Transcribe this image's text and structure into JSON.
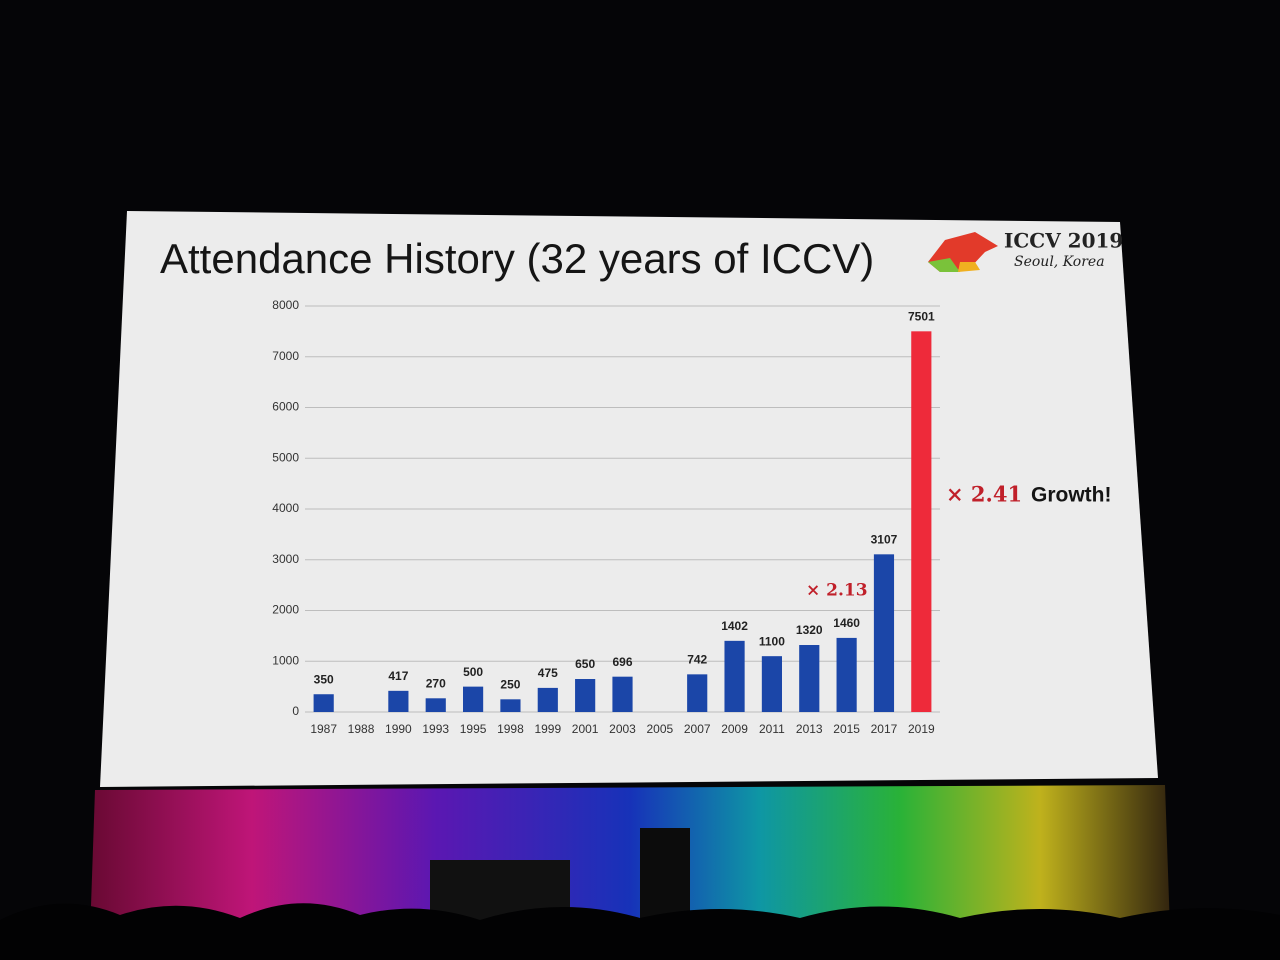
{
  "chart_data": {
    "type": "bar",
    "title": "Attendance History (32 years of ICCV)",
    "logo": {
      "name": "ICCV 2019",
      "place": "Seoul, Korea"
    },
    "categories": [
      "1987",
      "1988",
      "1990",
      "1993",
      "1995",
      "1998",
      "1999",
      "2001",
      "2003",
      "2005",
      "2007",
      "2009",
      "2011",
      "2013",
      "2015",
      "2017",
      "2019"
    ],
    "values": [
      350,
      null,
      417,
      270,
      500,
      250,
      475,
      650,
      696,
      null,
      742,
      1402,
      1100,
      1320,
      1460,
      3107,
      7501
    ],
    "colors": [
      "#1b46a8",
      "#1b46a8",
      "#1b46a8",
      "#1b46a8",
      "#1b46a8",
      "#1b46a8",
      "#1b46a8",
      "#1b46a8",
      "#1b46a8",
      "#1b46a8",
      "#1b46a8",
      "#1b46a8",
      "#1b46a8",
      "#1b46a8",
      "#1b46a8",
      "#1b46a8",
      "#ee2a3a"
    ],
    "ylim": [
      0,
      8000
    ],
    "yticks": [
      0,
      1000,
      2000,
      3000,
      4000,
      5000,
      6000,
      7000,
      8000
    ],
    "grid": true,
    "annotations": [
      "× 2.13",
      "× 2.41",
      "Growth!"
    ]
  }
}
